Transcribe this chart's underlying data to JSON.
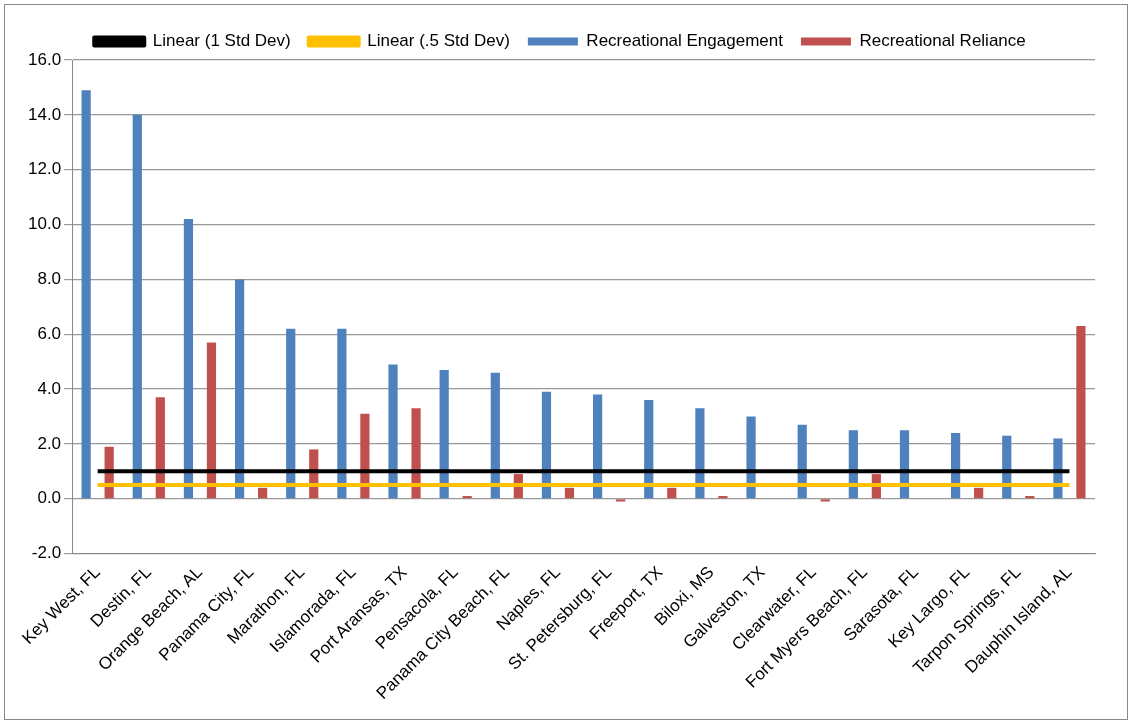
{
  "chart_data": {
    "type": "bar",
    "categories": [
      "Key West, FL",
      "Destin, FL",
      "Orange Beach, AL",
      "Panama City, FL",
      "Marathon, FL",
      "Islamorada, FL",
      "Port Aransas, TX",
      "Pensacola, FL",
      "Panama City Beach, FL",
      "Naples, FL",
      "St. Petersburg, FL",
      "Freeport, TX",
      "Biloxi, MS",
      "Galveston, TX",
      "Clearwater, FL",
      "Fort Myers Beach, FL",
      "Sarasota, FL",
      "Key Largo, FL",
      "Tarpon Springs, FL",
      "Dauphin Island, AL"
    ],
    "series": [
      {
        "name": "Recreational Engagement",
        "color": "#4f81bd",
        "values": [
          14.9,
          14.0,
          10.2,
          8.0,
          6.2,
          6.2,
          4.9,
          4.7,
          4.6,
          3.9,
          3.8,
          3.6,
          3.3,
          3.0,
          2.7,
          2.5,
          2.5,
          2.4,
          2.3,
          2.2
        ]
      },
      {
        "name": "Recreational Reliance",
        "color": "#c0504d",
        "values": [
          1.9,
          3.7,
          5.7,
          0.4,
          1.8,
          3.1,
          3.3,
          0.1,
          0.9,
          0.4,
          -0.1,
          0.4,
          0.1,
          0.0,
          -0.1,
          0.9,
          0.0,
          0.4,
          0.1,
          6.3
        ]
      },
      {
        "name": "Linear (1 Std Dev)",
        "type": "line",
        "color": "#000000",
        "values": [
          1.0,
          1.0,
          1.0,
          1.0,
          1.0,
          1.0,
          1.0,
          1.0,
          1.0,
          1.0,
          1.0,
          1.0,
          1.0,
          1.0,
          1.0,
          1.0,
          1.0,
          1.0,
          1.0,
          1.0
        ]
      },
      {
        "name": "Linear (.5 Std Dev)",
        "type": "line",
        "color": "#ffc000",
        "values": [
          0.5,
          0.5,
          0.5,
          0.5,
          0.5,
          0.5,
          0.5,
          0.5,
          0.5,
          0.5,
          0.5,
          0.5,
          0.5,
          0.5,
          0.5,
          0.5,
          0.5,
          0.5,
          0.5,
          0.5
        ]
      }
    ],
    "ylim": [
      -2,
      16
    ],
    "yticks": [
      {
        "value": -2,
        "label": "-2.0"
      },
      {
        "value": 0,
        "label": "0.0"
      },
      {
        "value": 2,
        "label": "2.0"
      },
      {
        "value": 4,
        "label": "4.0"
      },
      {
        "value": 6,
        "label": "6.0"
      },
      {
        "value": 8,
        "label": "8.0"
      },
      {
        "value": 10,
        "label": "10.0"
      },
      {
        "value": 12,
        "label": "12.0"
      },
      {
        "value": 14,
        "label": "14.0"
      },
      {
        "value": 16,
        "label": "16.0"
      }
    ],
    "grid": "y",
    "legend": "top",
    "marker": "none"
  }
}
